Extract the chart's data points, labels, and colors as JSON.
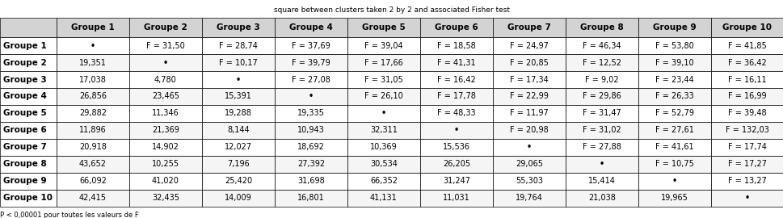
{
  "title": "square between clusters taken 2 by 2 and associated Fisher test",
  "columns": [
    "",
    "Groupe 1",
    "Groupe 2",
    "Groupe 3",
    "Groupe 4",
    "Groupe 5",
    "Groupe 6",
    "Groupe 7",
    "Groupe 8",
    "Groupe 9",
    "Groupe 10"
  ],
  "rows": [
    [
      "Groupe 1",
      "-",
      "F = 31,50",
      "F = 28,74",
      "F = 37,69",
      "F = 39,04",
      "F = 18,58",
      "F = 24,97",
      "F = 46,34",
      "F = 53,80",
      "F = 41,85"
    ],
    [
      "Groupe 2",
      "19,351",
      "-",
      "F = 10,17",
      "F = 39,79",
      "F = 17,66",
      "F = 41,31",
      "F = 20,85",
      "F = 12,52",
      "F = 39,10",
      "F = 36,42"
    ],
    [
      "Groupe 3",
      "17,038",
      "4,780",
      "-",
      "F = 27,08",
      "F = 31,05",
      "F = 16,42",
      "F = 17,34",
      "F = 9,02",
      "F = 23,44",
      "F = 16,11"
    ],
    [
      "Groupe 4",
      "26,856",
      "23,465",
      "15,391",
      "-",
      "F = 26,10",
      "F = 17,78",
      "F = 22,99",
      "F = 29,86",
      "F = 26,33",
      "F = 16,99"
    ],
    [
      "Groupe 5",
      "29,882",
      "11,346",
      "19,288",
      "19,335",
      "-",
      "F = 48,33",
      "F = 11,97",
      "F = 31,47",
      "F = 52,79",
      "F = 39,48"
    ],
    [
      "Groupe 6",
      "11,896",
      "21,369",
      "8,144",
      "10,943",
      "32,311",
      "-",
      "F = 20,98",
      "F = 31,02",
      "F = 27,61",
      "F = 132,03"
    ],
    [
      "Groupe 7",
      "20,918",
      "14,902",
      "12,027",
      "18,692",
      "10,369",
      "15,536",
      "-",
      "F = 27,88",
      "F = 41,61",
      "F = 17,74"
    ],
    [
      "Groupe 8",
      "43,652",
      "10,255",
      "7,196",
      "27,392",
      "30,534",
      "26,205",
      "29,065",
      "-",
      "F = 10,75",
      "F = 17,27"
    ],
    [
      "Groupe 9",
      "66,092",
      "41,020",
      "25,420",
      "31,698",
      "66,352",
      "31,247",
      "55,303",
      "15,414",
      "-",
      "F = 13,27"
    ],
    [
      "Groupe 10",
      "42,415",
      "32,435",
      "14,009",
      "16,801",
      "41,131",
      "11,031",
      "19,764",
      "21,038",
      "19,965",
      "-"
    ]
  ],
  "footnote": "P < 0,00001 pour toutes les valeurs de F",
  "header_bg": "#d3d3d3",
  "row_label_bg": "#ffffff",
  "cell_bg_even": "#ffffff",
  "cell_bg_odd": "#f5f5f5",
  "border_color": "#000000",
  "header_font_size": 7.5,
  "cell_font_size": 7.0,
  "bold_headers": true
}
